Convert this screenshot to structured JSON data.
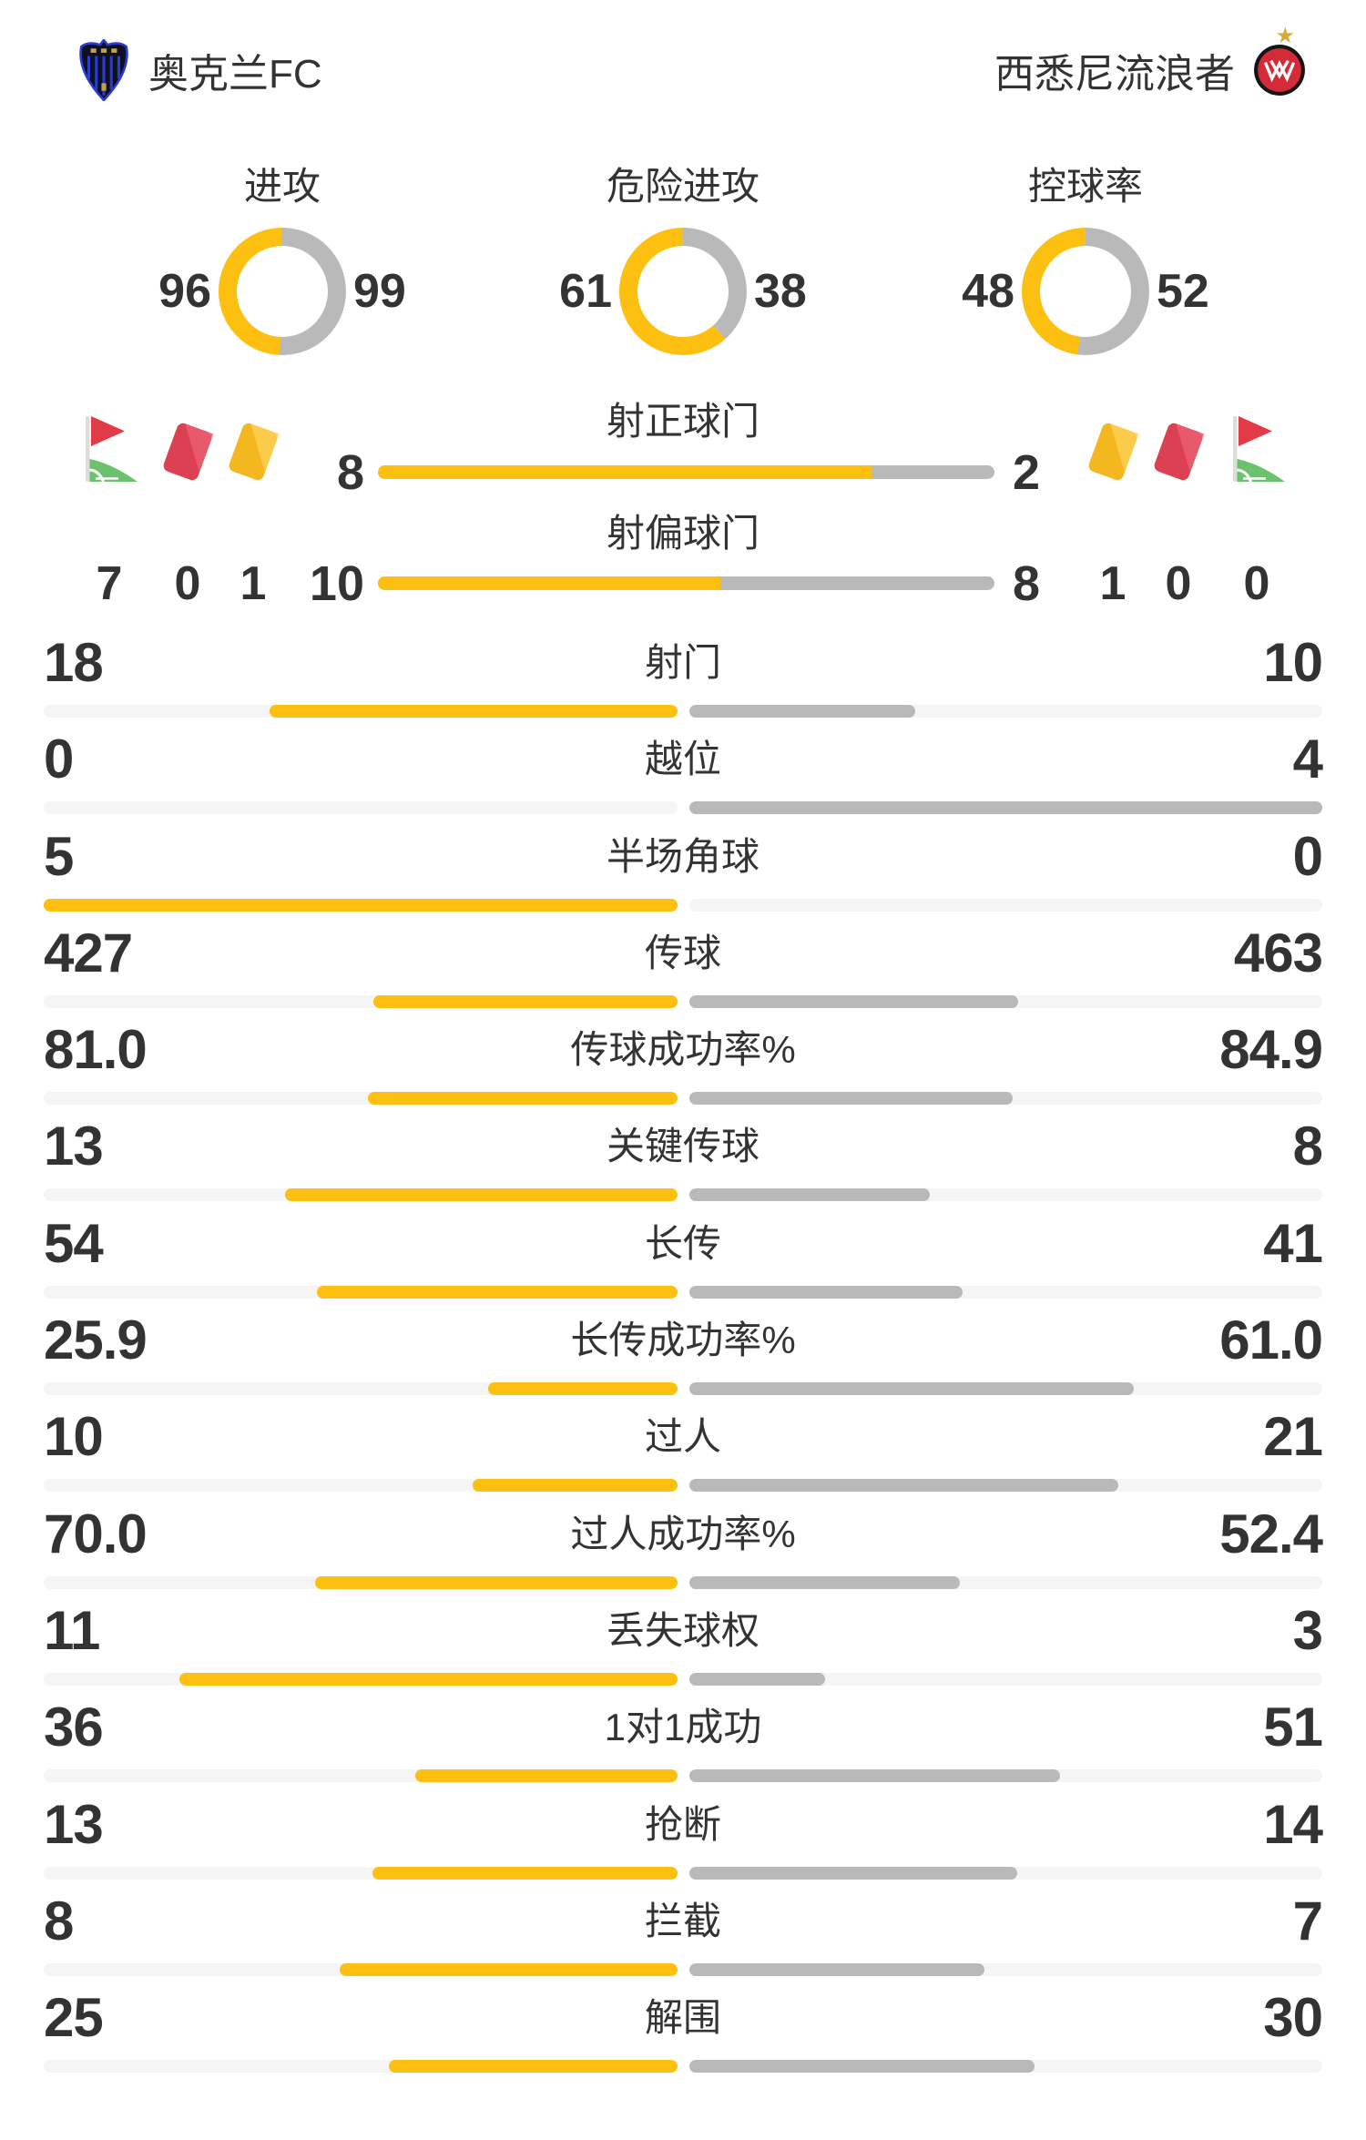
{
  "header": {
    "home_team": "奥克兰FC",
    "away_team": "西悉尼流浪者",
    "away_star": "★"
  },
  "icons": {
    "home_cluster": [
      "corner-flag-icon",
      "red-card-icon",
      "yellow-card-icon"
    ],
    "away_cluster": [
      "yellow-card-icon",
      "red-card-icon",
      "corner-flag-icon"
    ]
  },
  "chart_data": {
    "type": "match-stats-comparison",
    "teams": [
      "奥克兰FC",
      "西悉尼流浪者"
    ],
    "donuts": [
      {
        "label": "进攻",
        "home": 96,
        "away": 99
      },
      {
        "label": "危险进攻",
        "home": 61,
        "away": 38
      },
      {
        "label": "控球率",
        "home": 48,
        "away": 52
      }
    ],
    "discipline": {
      "home": {
        "corners": 7,
        "red_cards": 0,
        "yellow_cards": 1
      },
      "away": {
        "yellow_cards": 1,
        "red_cards": 0,
        "corners": 0
      }
    },
    "shot_bars": [
      {
        "label": "射正球门",
        "home": 8,
        "away": 2
      },
      {
        "label": "射偏球门",
        "home": 10,
        "away": 8
      }
    ],
    "rows": [
      {
        "label": "射门",
        "home": "18",
        "away": "10"
      },
      {
        "label": "越位",
        "home": "0",
        "away": "4"
      },
      {
        "label": "半场角球",
        "home": "5",
        "away": "0"
      },
      {
        "label": "传球",
        "home": "427",
        "away": "463"
      },
      {
        "label": "传球成功率%",
        "home": "81.0",
        "away": "84.9"
      },
      {
        "label": "关键传球",
        "home": "13",
        "away": "8"
      },
      {
        "label": "长传",
        "home": "54",
        "away": "41"
      },
      {
        "label": "长传成功率%",
        "home": "25.9",
        "away": "61.0"
      },
      {
        "label": "过人",
        "home": "10",
        "away": "21"
      },
      {
        "label": "过人成功率%",
        "home": "70.0",
        "away": "52.4"
      },
      {
        "label": "丢失球权",
        "home": "11",
        "away": "3"
      },
      {
        "label": "1对1成功",
        "home": "36",
        "away": "51"
      },
      {
        "label": "抢断",
        "home": "13",
        "away": "14"
      },
      {
        "label": "拦截",
        "home": "8",
        "away": "7"
      },
      {
        "label": "解围",
        "home": "25",
        "away": "30"
      }
    ]
  },
  "colors": {
    "home_bar": "#fdbf10",
    "away_bar": "#b9b9b9",
    "track": "#f5f5f5",
    "text": "#333333",
    "red_card": "#dc4053",
    "yellow_card": "#f5b71f",
    "flag_red": "#e23b47",
    "pitch_green": "#6cc16c",
    "home_logo_blue": "#2b3cd0",
    "away_logo_red": "#d42b39",
    "star_gold": "#d9a93c"
  }
}
